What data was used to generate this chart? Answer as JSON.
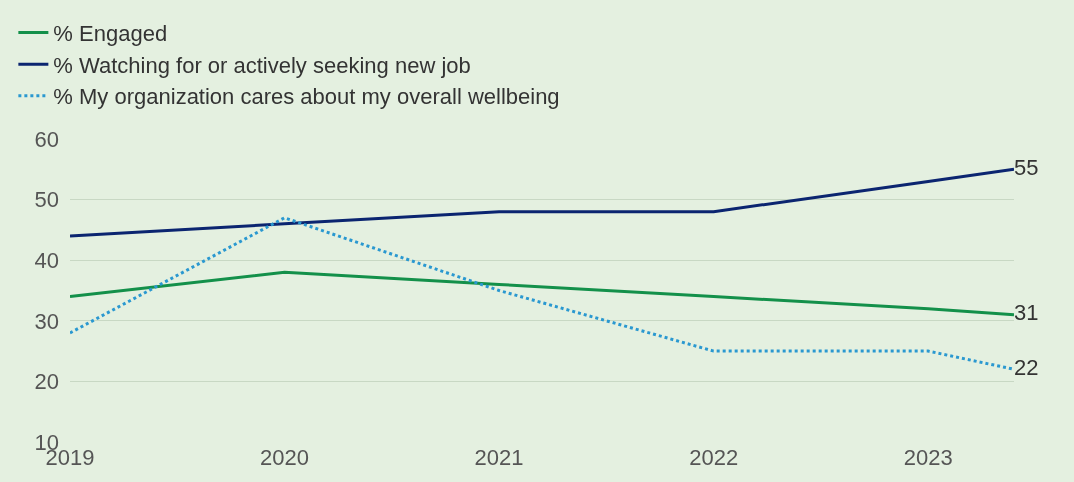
{
  "chart_data": {
    "type": "line",
    "x": [
      2019,
      2020,
      2021,
      2022,
      2023,
      2023.4
    ],
    "series": [
      {
        "name": "% Engaged",
        "color": "#13904a",
        "values": [
          34,
          38,
          36,
          34,
          32,
          31
        ],
        "value_labels": [
          null,
          null,
          null,
          null,
          null,
          "31"
        ],
        "line_style": "solid"
      },
      {
        "name": "% Watching for or actively seeking new job",
        "color": "#0b2570",
        "values": [
          44,
          46,
          48,
          48,
          53,
          55
        ],
        "value_labels": [
          null,
          null,
          null,
          null,
          null,
          "55"
        ],
        "line_style": "solid"
      },
      {
        "name": "% My organization cares about my overall wellbeing",
        "color": "#2a98d0",
        "values": [
          28,
          47,
          35,
          25,
          25,
          22
        ],
        "value_labels": [
          null,
          null,
          null,
          null,
          null,
          "22"
        ],
        "line_style": "dotted"
      }
    ],
    "xlim": [
      2019,
      2023.4
    ],
    "xticks": [
      2019,
      2020,
      2021,
      2022,
      2023
    ],
    "ylim": [
      10,
      60
    ],
    "yticks": [
      10,
      20,
      30,
      40,
      50,
      60
    ],
    "grid": "y",
    "legend": "top left",
    "marker": "none"
  }
}
